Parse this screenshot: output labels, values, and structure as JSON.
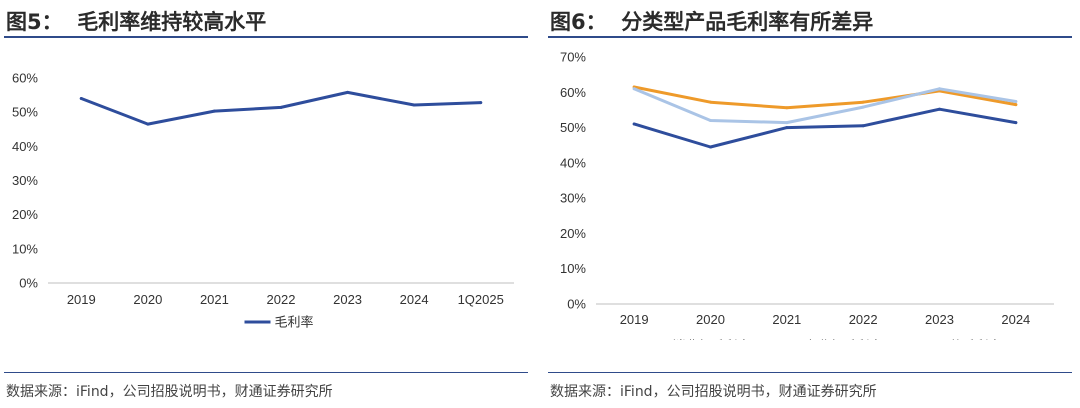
{
  "left": {
    "title": "图5：  毛利率维持较高水平",
    "source": "数据来源：iFind，公司招股说明书，财通证券研究所"
  },
  "right": {
    "title": "图6：  分类型产品毛利率有所差异",
    "source": "数据来源：iFind，公司招股说明书，财通证券研究所"
  },
  "colors": {
    "navy": "#2e4d9c",
    "orange": "#ee9a2a",
    "lightblue": "#aac4e6",
    "axis": "#bfbfbf",
    "rule": "#2f4b8a"
  },
  "chart_data": [
    {
      "type": "line",
      "categories": [
        "2019",
        "2020",
        "2021",
        "2022",
        "2023",
        "2024",
        "1Q2025"
      ],
      "series": [
        {
          "name": "毛利率",
          "color": "#2e4d9c",
          "values": [
            54.0,
            46.5,
            50.3,
            51.4,
            55.8,
            52.1,
            52.8
          ]
        }
      ],
      "y_ticks": [
        "0%",
        "10%",
        "20%",
        "30%",
        "40%",
        "50%",
        "60%"
      ],
      "ylim": [
        0,
        60
      ],
      "grid": false,
      "legend": "bottom"
    },
    {
      "type": "line",
      "categories": [
        "2019",
        "2020",
        "2021",
        "2022",
        "2023",
        "2024"
      ],
      "series": [
        {
          "name": "消费级毛利率",
          "color": "#2e4d9c",
          "values": [
            51.0,
            44.5,
            50.0,
            50.5,
            55.2,
            51.4
          ]
        },
        {
          "name": "专业级毛利率",
          "color": "#ee9a2a",
          "values": [
            61.5,
            57.2,
            55.6,
            57.2,
            60.4,
            56.5
          ]
        },
        {
          "name": "配件毛利率",
          "color": "#aac4e6",
          "values": [
            61.0,
            52.0,
            51.4,
            55.8,
            61.0,
            57.4
          ]
        }
      ],
      "y_ticks": [
        "0%",
        "10%",
        "20%",
        "30%",
        "40%",
        "50%",
        "60%",
        "70%"
      ],
      "ylim": [
        0,
        70
      ],
      "grid": false,
      "legend": "bottom"
    }
  ]
}
